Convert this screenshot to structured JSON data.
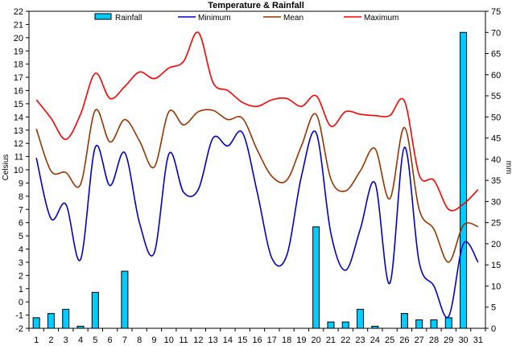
{
  "chart_data": {
    "type": "bar+line",
    "title": "Temperature & Rainfall",
    "ylabel": "Celsius",
    "ylabel_right": "mm",
    "ylim": [
      -2,
      22
    ],
    "ylim_right": [
      0,
      75
    ],
    "categories": [
      "1",
      "2",
      "3",
      "4",
      "5",
      "6",
      "7",
      "8",
      "9",
      "10",
      "11",
      "12",
      "13",
      "14",
      "15",
      "16",
      "17",
      "18",
      "19",
      "20",
      "21",
      "22",
      "23",
      "24",
      "25",
      "26",
      "27",
      "28",
      "29",
      "30",
      "31"
    ],
    "grid": false,
    "legend_position": "top",
    "series": [
      {
        "name": "Rainfall",
        "type": "bar",
        "axis": "right",
        "color": "#00ccff",
        "values": [
          2.5,
          3.5,
          4.5,
          0.5,
          8.5,
          0,
          13.5,
          0,
          0,
          0,
          0,
          0,
          0,
          0,
          0,
          0,
          0,
          0,
          0,
          24,
          1.5,
          1.5,
          4.5,
          0.5,
          0,
          3.5,
          2,
          2,
          2.5,
          70,
          0
        ]
      },
      {
        "name": "Minimum",
        "type": "line",
        "axis": "left",
        "color": "#0000cc",
        "values": [
          10.9,
          6.3,
          7.4,
          3.2,
          11.7,
          8.8,
          11.3,
          6.0,
          3.7,
          11.2,
          8.3,
          8.5,
          12.4,
          11.8,
          12.8,
          8.3,
          3.3,
          3.5,
          9.5,
          12.8,
          5.2,
          2.4,
          5.5,
          9.0,
          1.4,
          11.7,
          3.0,
          1.2,
          -1.1,
          4.4,
          3.0
        ]
      },
      {
        "name": "Mean",
        "type": "line",
        "axis": "left",
        "color": "#993300",
        "values": [
          13.1,
          9.9,
          9.8,
          8.9,
          14.5,
          12.1,
          13.8,
          12.2,
          10.2,
          14.4,
          13.4,
          14.4,
          14.5,
          13.8,
          13.9,
          11.5,
          9.5,
          9.2,
          11.8,
          14.2,
          9.3,
          8.4,
          9.9,
          11.6,
          7.8,
          13.2,
          7.0,
          5.5,
          3.0,
          5.8,
          5.7
        ]
      },
      {
        "name": "Maximum",
        "type": "line",
        "axis": "left",
        "color": "#ff0000",
        "values": [
          15.3,
          13.9,
          12.3,
          14.2,
          17.3,
          15.4,
          16.3,
          17.4,
          16.9,
          17.7,
          18.2,
          20.4,
          16.6,
          16.0,
          15.1,
          14.8,
          15.3,
          15.4,
          14.8,
          15.6,
          13.3,
          14.4,
          14.2,
          14.1,
          14.1,
          15.2,
          9.6,
          9.2,
          7.0,
          7.4,
          8.5
        ]
      }
    ]
  }
}
